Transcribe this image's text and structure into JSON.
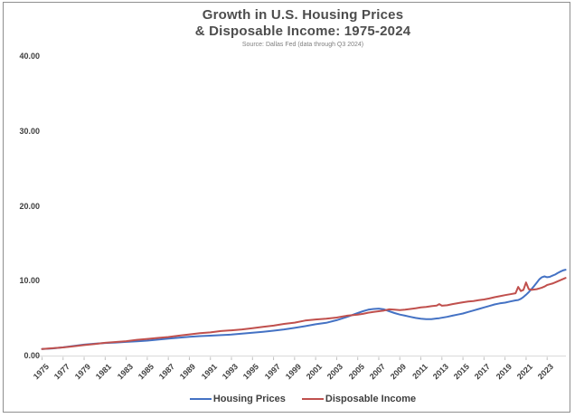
{
  "window": {
    "background": "#ffffff",
    "border_color": "#8f8f8f"
  },
  "header": {
    "title_line1": "Growth in U.S. Housing Prices",
    "title_line2": "& Disposable Income: 1975-2024",
    "subtitle": "Source: Dallas Fed (data through Q3 2024)"
  },
  "legend": {
    "items": [
      {
        "label": "Housing Prices",
        "color": "#4472C4"
      },
      {
        "label": "Disposable Income",
        "color": "#C0504D"
      }
    ]
  },
  "chart_data": {
    "type": "line",
    "title": "Growth in U.S. Housing Prices & Disposable Income: 1975-2024",
    "subtitle": "Source: Dallas Fed (data through Q3 2024)",
    "xlabel": "",
    "ylabel": "",
    "xlim": [
      1975,
      2024.75
    ],
    "ylim": [
      0,
      40
    ],
    "y_ticks": [
      0,
      10,
      20,
      30,
      40
    ],
    "y_tick_labels": [
      "0.00",
      "10.00",
      "20.00",
      "30.00",
      "40.00"
    ],
    "x_tick_years": [
      1975,
      1977,
      1979,
      1981,
      1983,
      1985,
      1987,
      1989,
      1991,
      1993,
      1995,
      1997,
      1999,
      2001,
      2003,
      2005,
      2007,
      2009,
      2011,
      2013,
      2015,
      2017,
      2019,
      2021,
      2023
    ],
    "grid": "baseline-only",
    "legend_position": "bottom",
    "axis_color": "#d9d9d9",
    "tick_color": "#bfbfbf",
    "x": [
      1975,
      1976,
      1977,
      1978,
      1979,
      1980,
      1981,
      1982,
      1983,
      1984,
      1985,
      1986,
      1987,
      1988,
      1989,
      1990,
      1991,
      1992,
      1993,
      1994,
      1995,
      1996,
      1997,
      1998,
      1999,
      2000,
      2001,
      2002,
      2003,
      2004,
      2005,
      2005.5,
      2006,
      2006.5,
      2007,
      2007.5,
      2008,
      2008.5,
      2009,
      2009.5,
      2010,
      2010.5,
      2011,
      2011.5,
      2012,
      2012.5,
      2012.75,
      2013,
      2013.5,
      2014,
      2014.5,
      2015,
      2015.5,
      2016,
      2016.5,
      2017,
      2017.5,
      2018,
      2018.5,
      2019,
      2019.5,
      2020,
      2020.25,
      2020.5,
      2020.75,
      2021,
      2021.25,
      2021.5,
      2021.75,
      2022,
      2022.25,
      2022.5,
      2022.75,
      2023,
      2023.25,
      2023.5,
      2023.75,
      2024,
      2024.25,
      2024.5,
      2024.75
    ],
    "series": [
      {
        "name": "Housing Prices",
        "color": "#4472C4",
        "values": [
          1.0,
          1.08,
          1.22,
          1.4,
          1.58,
          1.7,
          1.8,
          1.86,
          1.95,
          2.03,
          2.12,
          2.25,
          2.38,
          2.5,
          2.62,
          2.72,
          2.78,
          2.85,
          2.93,
          3.05,
          3.18,
          3.3,
          3.45,
          3.62,
          3.82,
          4.05,
          4.3,
          4.5,
          4.85,
          5.3,
          5.8,
          6.05,
          6.25,
          6.35,
          6.4,
          6.3,
          6.05,
          5.8,
          5.6,
          5.45,
          5.3,
          5.15,
          5.05,
          5.0,
          5.0,
          5.08,
          5.12,
          5.18,
          5.3,
          5.45,
          5.6,
          5.75,
          5.95,
          6.15,
          6.35,
          6.55,
          6.75,
          6.95,
          7.1,
          7.2,
          7.35,
          7.5,
          7.55,
          7.7,
          7.95,
          8.25,
          8.6,
          9.0,
          9.4,
          9.85,
          10.3,
          10.6,
          10.7,
          10.6,
          10.65,
          10.8,
          10.95,
          11.15,
          11.35,
          11.5,
          11.6
        ]
      },
      {
        "name": "Disposable Income",
        "color": "#C0504D",
        "values": [
          1.0,
          1.1,
          1.21,
          1.36,
          1.52,
          1.67,
          1.83,
          1.93,
          2.05,
          2.22,
          2.35,
          2.48,
          2.6,
          2.78,
          2.95,
          3.12,
          3.22,
          3.4,
          3.5,
          3.62,
          3.78,
          3.95,
          4.12,
          4.35,
          4.52,
          4.8,
          4.95,
          5.05,
          5.2,
          5.45,
          5.6,
          5.7,
          5.85,
          5.95,
          6.05,
          6.15,
          6.3,
          6.25,
          6.2,
          6.25,
          6.35,
          6.45,
          6.55,
          6.62,
          6.72,
          6.8,
          7.0,
          6.78,
          6.85,
          7.0,
          7.12,
          7.25,
          7.35,
          7.42,
          7.52,
          7.62,
          7.75,
          7.92,
          8.05,
          8.2,
          8.32,
          8.45,
          9.3,
          8.75,
          8.9,
          9.9,
          9.0,
          8.9,
          8.95,
          9.0,
          9.1,
          9.2,
          9.35,
          9.55,
          9.65,
          9.75,
          9.9,
          10.05,
          10.2,
          10.35,
          10.5
        ]
      }
    ]
  }
}
